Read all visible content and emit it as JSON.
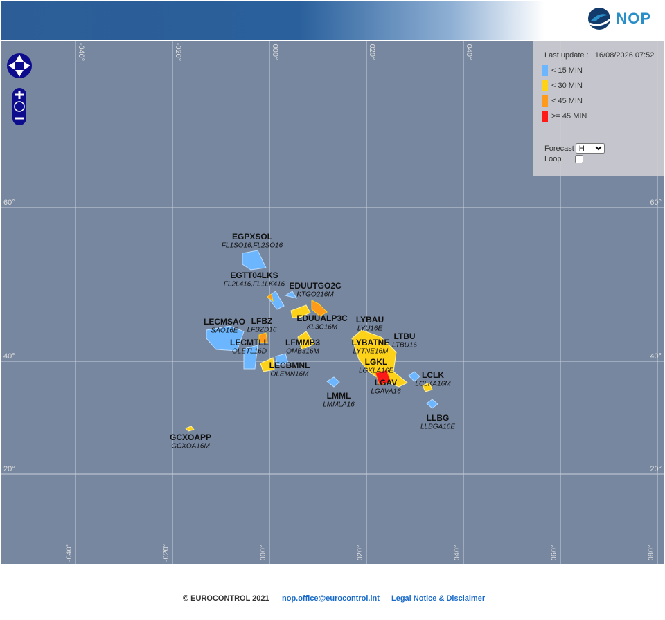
{
  "header": {
    "logo": "NOP"
  },
  "legend": {
    "last_update_label": "Last update :",
    "last_update": "16/08/2026 07:52",
    "items": [
      {
        "label": "< 15 MIN",
        "color": "#6cb6ff"
      },
      {
        "label": "< 30 MIN",
        "color": "#ffd21a"
      },
      {
        "label": "< 45 MIN",
        "color": "#ff9a1a"
      },
      {
        "label": ">= 45 MIN",
        "color": "#ff1a1a"
      }
    ],
    "forecast_label": "Forecast",
    "forecast_value": "H",
    "loop_label": "Loop"
  },
  "map": {
    "top_labels": [
      "-040°",
      "-020°",
      "000°",
      "020°",
      "040°"
    ],
    "parallel_labels": [
      "60°",
      "40°",
      "20°"
    ],
    "bottom_labels": [
      "-040°",
      "-020°",
      "000°",
      "020°",
      "040°",
      "060°",
      "080°"
    ],
    "sectors": [
      {
        "name": "EGPXSOL",
        "code": "FL1SO16,FL2SO16"
      },
      {
        "name": "EGTT04LKS",
        "code": "FL2L416,FL1LK416"
      },
      {
        "name": "EDUUTGO2C",
        "code": "KTGO216M"
      },
      {
        "name": "LECMSAO",
        "code": "SAO16E"
      },
      {
        "name": "LFBZ",
        "code": "LFBZD16"
      },
      {
        "name": "EDUUALP3C",
        "code": "KL3C16M"
      },
      {
        "name": "LYBAU",
        "code": "LYU16E"
      },
      {
        "name": "LTBU",
        "code": "LTBU16"
      },
      {
        "name": "LECMTLL",
        "code": "OLETL16D"
      },
      {
        "name": "LFMMB3",
        "code": "OMB316M"
      },
      {
        "name": "LYBATNE",
        "code": "LYTNE16M"
      },
      {
        "name": "LGKL",
        "code": "LGKLA16E"
      },
      {
        "name": "LECBMNL",
        "code": "OLEMN16M"
      },
      {
        "name": "LGAV",
        "code": "LGAVA16"
      },
      {
        "name": "LCLK",
        "code": "LCLKA16M"
      },
      {
        "name": "LMML",
        "code": "LMMLA16"
      },
      {
        "name": "LLBG",
        "code": "LLBGA16E"
      },
      {
        "name": "GCXOAPP",
        "code": "GCXOA16M"
      }
    ]
  },
  "footer": {
    "copyright": "© EUROCONTROL 2021",
    "email": "nop.office@eurocontrol.int",
    "legal": "Legal Notice & Disclaimer"
  }
}
